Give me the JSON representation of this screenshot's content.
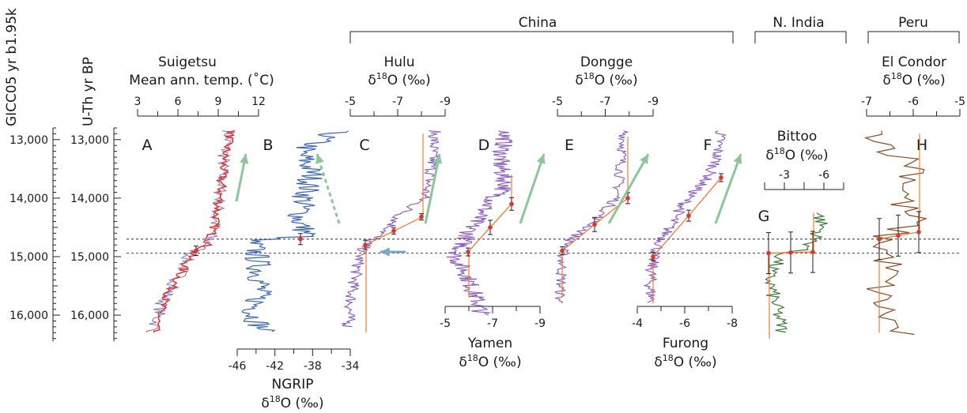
{
  "labels": {
    "gicc": "GICC05 yr b1.95k",
    "uth": "U-Th yr BP",
    "region_china": "China",
    "region_india": "N. India",
    "region_peru": "Peru",
    "suigetsu_1": "Suigetsu",
    "suigetsu_2": "Mean ann. temp. (˚C)",
    "hulu_1": "Hulu",
    "dongge_1": "Dongge",
    "bittoo_1": "Bittoo",
    "elcondor_1": "El Condor",
    "yamen_1": "Yamen",
    "furong_1": "Furong",
    "ngrip_1": "NGRIP",
    "delta_prefix": "δ",
    "delta_sup": "18",
    "delta_suffix": "O (‰)"
  },
  "chart_data": {
    "type": "line",
    "y_axis": {
      "ticks_gicc": [
        "13,000",
        "14,000",
        "15,000",
        "16,000"
      ],
      "ticks_uth": [
        "13,000",
        "14,000",
        "15,000",
        "16,000"
      ],
      "range": [
        12800,
        16350
      ]
    },
    "reference_lines": [
      14700,
      14940
    ],
    "panels": [
      {
        "letter": "A",
        "record": "Suigetsu",
        "xlabel": "Mean ann. temp. (˚C)",
        "ticks": [
          "3",
          "6",
          "9",
          "12"
        ],
        "xlim": [
          3,
          12
        ],
        "series_colors": [
          "#8a7fc0",
          "#e0332e"
        ]
      },
      {
        "letter": "B",
        "record": "NGRIP",
        "xlabel": "δ18O (‰)",
        "ticks": [
          "-46",
          "-42",
          "-38",
          "-34"
        ],
        "xlim": [
          -46,
          -34
        ],
        "series_colors": [
          "#3b66b0"
        ]
      },
      {
        "letter": "C",
        "record": "Hulu",
        "xlabel": "δ18O (‰)",
        "ticks": [
          "-5",
          "-7",
          "-9"
        ],
        "xlim": [
          -5,
          -9
        ],
        "series_colors": [
          "#8a5cc0"
        ]
      },
      {
        "letter": "D",
        "record": "Yamen",
        "xlabel": "δ18O (‰)",
        "ticks": [
          "-5",
          "-7",
          "-9"
        ],
        "xlim": [
          -5,
          -9
        ],
        "series_colors": [
          "#8a5cc0"
        ]
      },
      {
        "letter": "E",
        "record": "Dongge",
        "xlabel": "δ18O (‰)",
        "ticks": [
          "-5",
          "-7",
          "-9"
        ],
        "xlim": [
          -5,
          -9
        ],
        "series_colors": [
          "#8a5cc0"
        ]
      },
      {
        "letter": "F",
        "record": "Furong",
        "xlabel": "δ18O (‰)",
        "ticks": [
          "-4",
          "-6",
          "-8"
        ],
        "xlim": [
          -4,
          -8
        ],
        "series_colors": [
          "#8a5cc0"
        ]
      },
      {
        "letter": "G",
        "record": "Bittoo",
        "xlabel": "δ18O (‰)",
        "ticks": [
          "-3",
          "-6"
        ],
        "xlim": [
          -3,
          -6
        ],
        "series_colors": [
          "#3f7a3a"
        ]
      },
      {
        "letter": "H",
        "record": "El Condor",
        "xlabel": "δ18O (‰)",
        "ticks": [
          "-7",
          "-6",
          "-5"
        ],
        "xlim": [
          -7,
          -5
        ],
        "series_colors": [
          "#8b4a1e"
        ]
      }
    ],
    "colors": {
      "fit": "#f07a30",
      "points": "#e0332e",
      "arrow": "#8cc79a",
      "arrow_blue": "#7ba7c6",
      "refline": "#555555"
    }
  }
}
